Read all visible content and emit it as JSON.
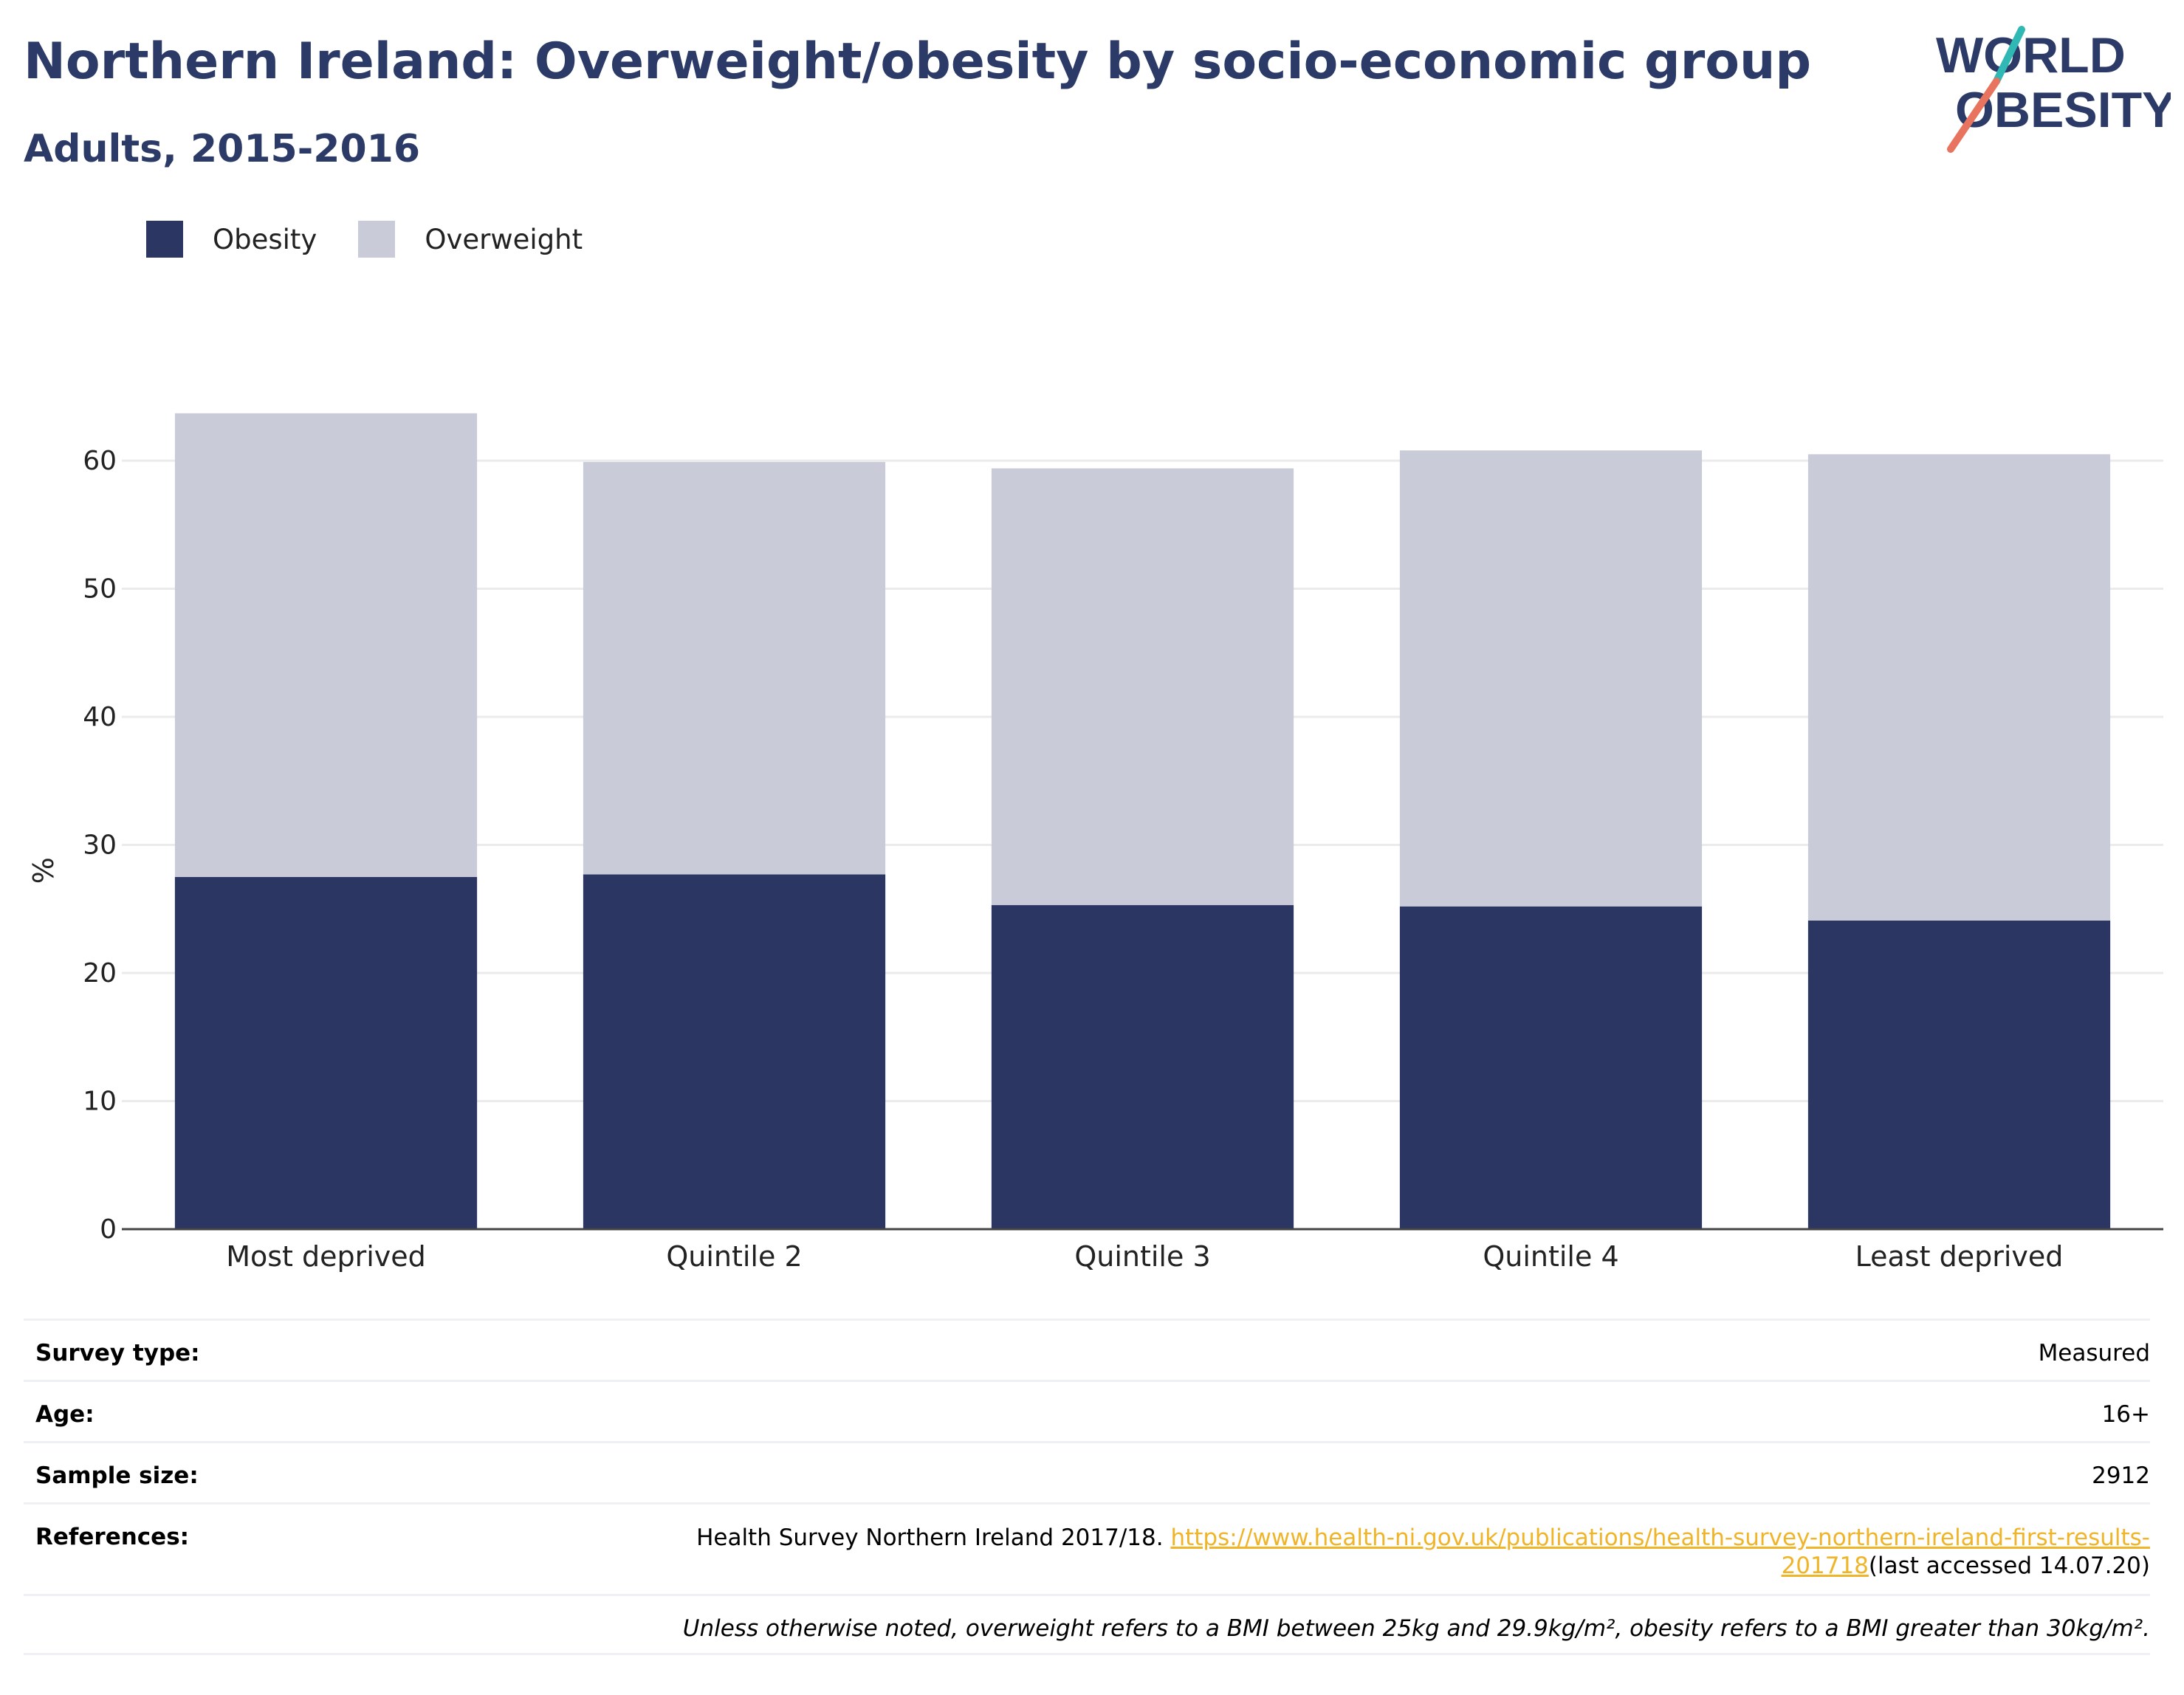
{
  "header": {
    "title": "Northern Ireland: Overweight/obesity by socio-economic group",
    "subtitle": "Adults, 2015-2016"
  },
  "logo": {
    "line1": "WORLD",
    "line2": "OBESITY"
  },
  "colors": {
    "obesity": "#2b3663",
    "overweight": "#c9ccd8",
    "title": "#2b3a67",
    "link": "#f0b429",
    "logo_teal": "#2fb8b4",
    "logo_coral": "#e8735f"
  },
  "chart_data": {
    "type": "bar",
    "stacked": true,
    "categories": [
      "Most deprived",
      "Quintile 2",
      "Quintile 3",
      "Quintile 4",
      "Least deprived"
    ],
    "series": [
      {
        "name": "Obesity",
        "values": [
          27.5,
          27.7,
          25.3,
          25.2,
          24.1
        ]
      },
      {
        "name": "Overweight",
        "values": [
          36.2,
          32.2,
          34.1,
          35.6,
          36.4
        ]
      }
    ],
    "ylabel": "%",
    "xlabel": "",
    "ylim": [
      0,
      66
    ],
    "yticks": [
      0,
      10,
      20,
      30,
      40,
      50,
      60
    ],
    "grid": true,
    "legend_position": "top-left"
  },
  "info": {
    "survey_type": {
      "label": "Survey type:",
      "value": "Measured"
    },
    "age": {
      "label": "Age:",
      "value": "16+"
    },
    "sample_size": {
      "label": "Sample size:",
      "value": "2912"
    },
    "references": {
      "label": "References:",
      "prefix": "Health Survey Northern Ireland 2017/18. ",
      "link_part1": "https://www.health-ni.gov.uk/publications/health-survey-northern-ireland-first-results-",
      "link_part2": "201718",
      "suffix": "(last accessed 14.07.20)"
    },
    "note": "Unless otherwise noted, overweight refers to a BMI between 25kg and 29.9kg/m², obesity refers to a BMI greater than 30kg/m²."
  }
}
